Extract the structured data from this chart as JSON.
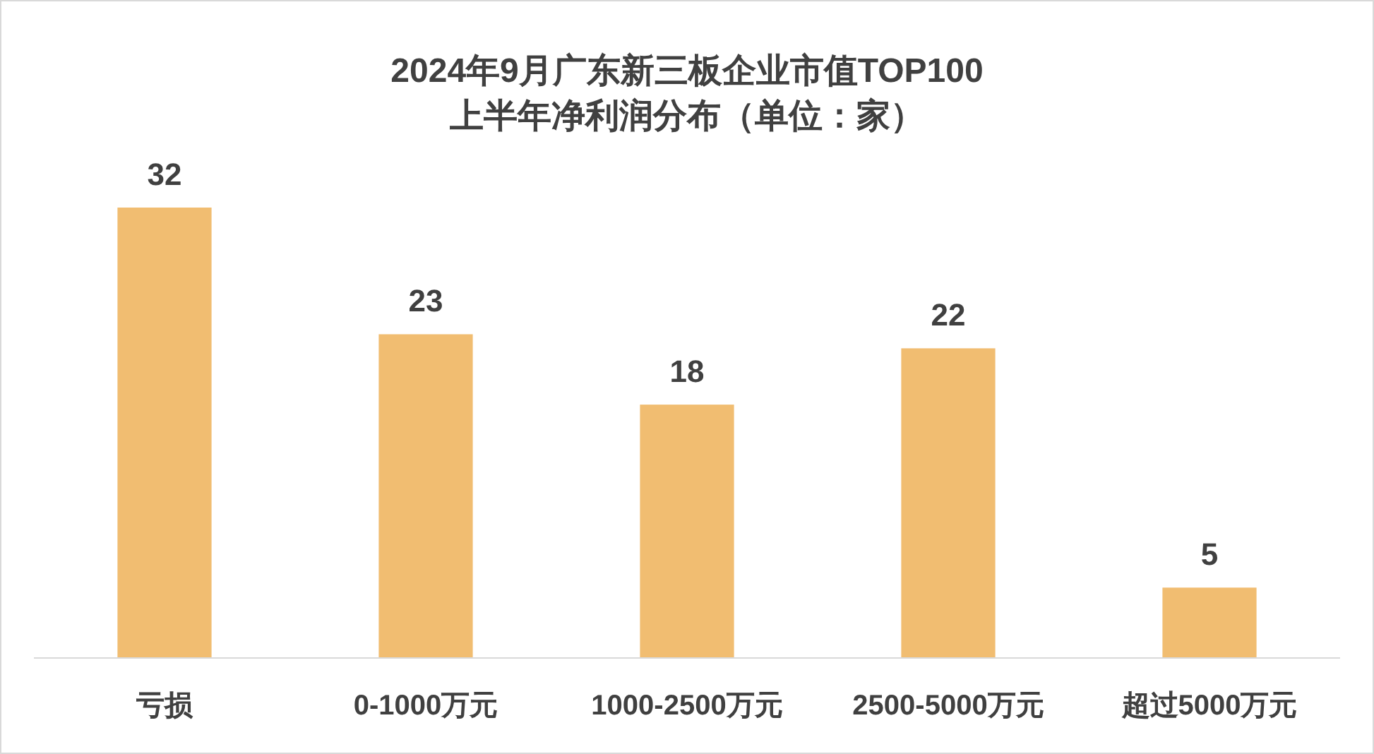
{
  "chart_data": {
    "type": "bar",
    "title": "2024年9月广东新三板企业市值TOP100\n上半年净利润分布（单位：家）",
    "categories": [
      "亏损",
      "0-1000万元",
      "1000-2500万元",
      "2500-5000万元",
      "超过5000万元"
    ],
    "values": [
      32,
      23,
      18,
      22,
      5
    ],
    "color": "#f1bd71",
    "data_labels": true,
    "grid": false,
    "legend": false
  }
}
